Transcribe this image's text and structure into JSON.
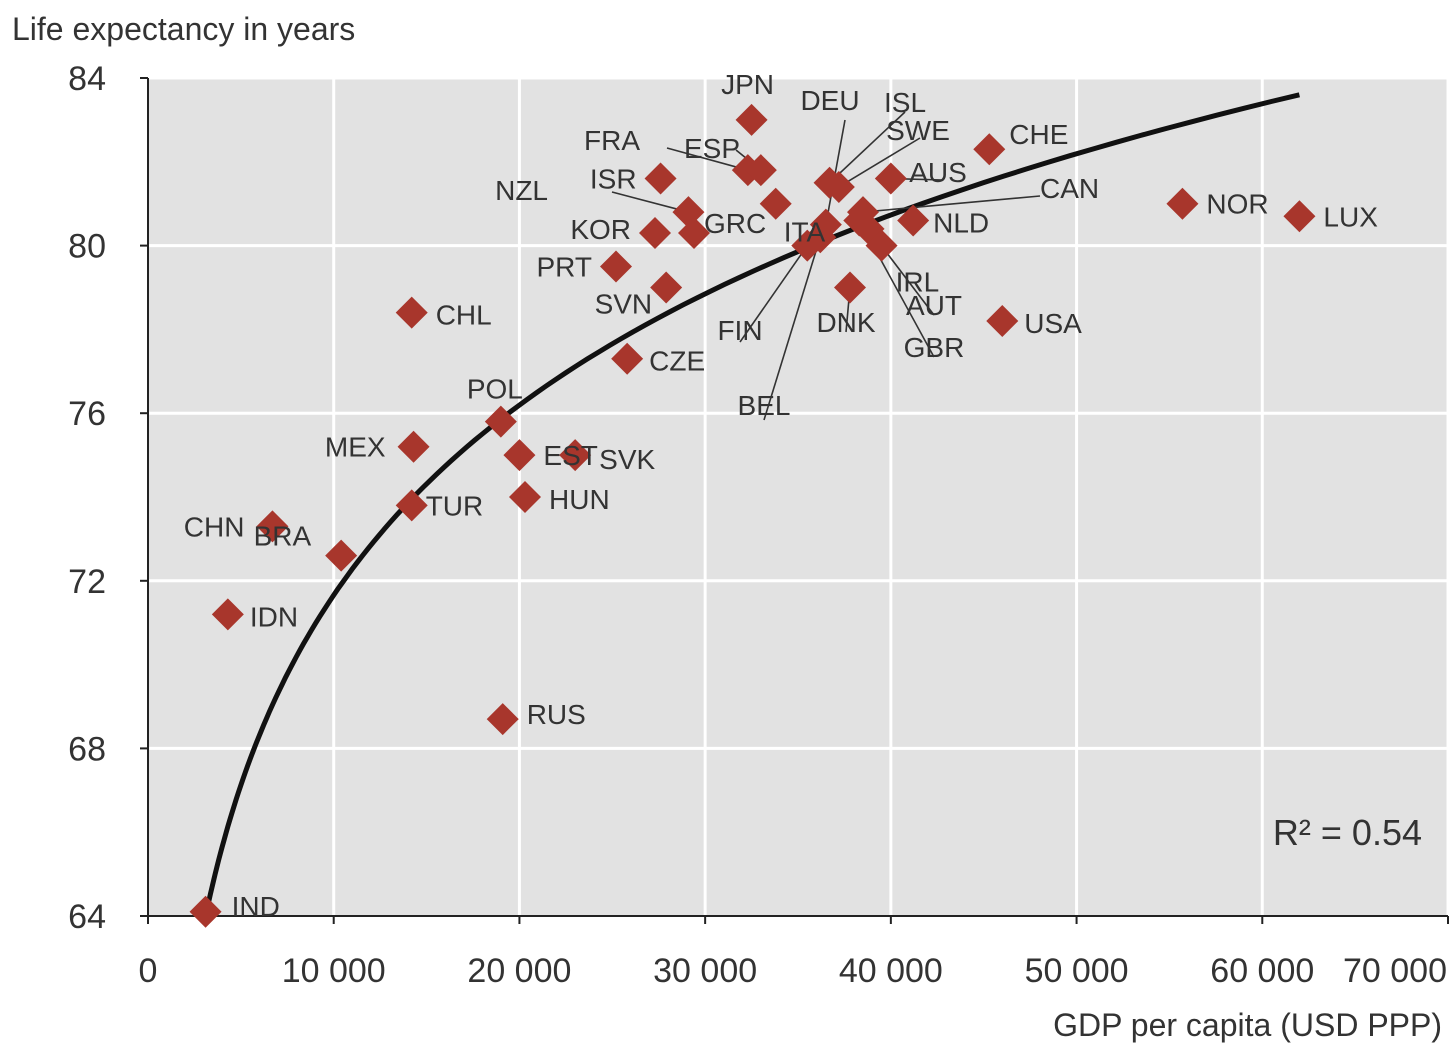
{
  "chart_data": {
    "type": "scatter",
    "ylabel": "Life expectancy in years",
    "xlabel": "GDP per capita (USD PPP)",
    "xlim": [
      0,
      70000
    ],
    "ylim": [
      64,
      84
    ],
    "x_ticks": [
      0,
      10000,
      20000,
      30000,
      40000,
      50000,
      60000,
      70000
    ],
    "x_tick_labels": [
      "0",
      "10 000",
      "20 000",
      "30 000",
      "40 000",
      "50 000",
      "60 000",
      "70 000"
    ],
    "y_ticks": [
      64,
      68,
      72,
      76,
      80,
      84
    ],
    "y_tick_labels": [
      "64",
      "68",
      "72",
      "76",
      "80",
      "84"
    ],
    "grid": true,
    "annotation": "R² = 0.54",
    "marker_color": "#a8362c",
    "plot_background": "#e2e2e2",
    "trend": {
      "type": "logarithmic",
      "x": [
        3200,
        62000
      ],
      "y": [
        64.2,
        83.6
      ]
    },
    "points": [
      {
        "label": "IND",
        "x": 3100,
        "y": 64.1
      },
      {
        "label": "IDN",
        "x": 4300,
        "y": 71.2
      },
      {
        "label": "CHN",
        "x": 6700,
        "y": 73.3
      },
      {
        "label": "BRA",
        "x": 10400,
        "y": 72.6
      },
      {
        "label": "MEX",
        "x": 14300,
        "y": 75.2
      },
      {
        "label": "TUR",
        "x": 14200,
        "y": 73.8
      },
      {
        "label": "CHL",
        "x": 14200,
        "y": 78.4
      },
      {
        "label": "RUS",
        "x": 19100,
        "y": 68.7
      },
      {
        "label": "POL",
        "x": 19000,
        "y": 75.8
      },
      {
        "label": "EST",
        "x": 20000,
        "y": 75.0
      },
      {
        "label": "HUN",
        "x": 20300,
        "y": 74.0
      },
      {
        "label": "SVK",
        "x": 23000,
        "y": 75.0
      },
      {
        "label": "CZE",
        "x": 25800,
        "y": 77.3
      },
      {
        "label": "PRT",
        "x": 25200,
        "y": 79.5
      },
      {
        "label": "SVN",
        "x": 27900,
        "y": 79.0
      },
      {
        "label": "KOR",
        "x": 27300,
        "y": 80.3
      },
      {
        "label": "ISR",
        "x": 27600,
        "y": 81.6
      },
      {
        "label": "NZL",
        "x": 29100,
        "y": 80.8
      },
      {
        "label": "GRC",
        "x": 29400,
        "y": 80.3
      },
      {
        "label": "JPN",
        "x": 32500,
        "y": 83.0
      },
      {
        "label": "FRA",
        "x": 32300,
        "y": 81.8
      },
      {
        "label": "ESP",
        "x": 33000,
        "y": 81.8
      },
      {
        "label": "ITA",
        "x": 33800,
        "y": 81.0
      },
      {
        "label": "FIN",
        "x": 35500,
        "y": 80.0
      },
      {
        "label": "BEL",
        "x": 36200,
        "y": 80.2
      },
      {
        "label": "DEU",
        "x": 36500,
        "y": 80.5
      },
      {
        "label": "ISL",
        "x": 36700,
        "y": 81.5
      },
      {
        "label": "SWE",
        "x": 37200,
        "y": 81.4
      },
      {
        "label": "DNK",
        "x": 37800,
        "y": 79.0
      },
      {
        "label": "GBR",
        "x": 38300,
        "y": 80.6
      },
      {
        "label": "AUT",
        "x": 38800,
        "y": 80.4
      },
      {
        "label": "CAN",
        "x": 38500,
        "y": 80.8
      },
      {
        "label": "IRL",
        "x": 39500,
        "y": 80.0
      },
      {
        "label": "AUS",
        "x": 40000,
        "y": 81.6
      },
      {
        "label": "NLD",
        "x": 41200,
        "y": 80.6
      },
      {
        "label": "CHE",
        "x": 45300,
        "y": 82.3
      },
      {
        "label": "USA",
        "x": 46000,
        "y": 78.2
      },
      {
        "label": "NOR",
        "x": 55700,
        "y": 81.0
      },
      {
        "label": "LUX",
        "x": 62000,
        "y": 80.7
      }
    ]
  }
}
